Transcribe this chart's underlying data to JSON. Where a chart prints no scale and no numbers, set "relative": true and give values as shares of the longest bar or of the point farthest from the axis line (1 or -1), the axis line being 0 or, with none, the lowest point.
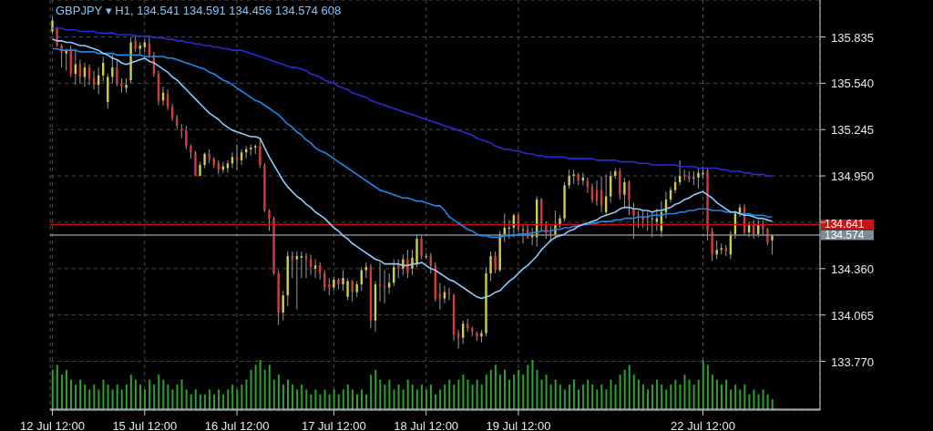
{
  "chart_data": [
    {
      "type": "candlestick",
      "title": "GBPJPY ▾ H1, 134.541 134.591 134.456 134.574 608",
      "categories": [
        "12 Jul 12:00",
        null,
        null,
        null,
        null,
        null,
        null,
        null,
        null,
        null,
        null,
        null,
        null,
        null,
        null,
        null,
        null,
        null,
        null,
        null,
        "15 Jul 12:00",
        null,
        null,
        null,
        null,
        null,
        null,
        null,
        null,
        null,
        null,
        null,
        null,
        null,
        null,
        null,
        null,
        null,
        null,
        null,
        "16 Jul 12:00",
        null,
        null,
        null,
        null,
        null,
        null,
        null,
        null,
        null,
        null,
        null,
        null,
        null,
        null,
        null,
        null,
        null,
        null,
        null,
        null,
        "17 Jul 12:00",
        null,
        null,
        null,
        null,
        null,
        null,
        null,
        null,
        null,
        null,
        null,
        null,
        null,
        null,
        null,
        null,
        null,
        null,
        null,
        "18 Jul 12:00",
        null,
        null,
        null,
        null,
        null,
        null,
        null,
        null,
        null,
        null,
        null,
        null,
        null,
        null,
        null,
        null,
        null,
        null,
        null,
        "19 Jul 12:00",
        null,
        null,
        null,
        null,
        null,
        null,
        null,
        null,
        null,
        null,
        null,
        null,
        null,
        null,
        null,
        null,
        null,
        null,
        null,
        null,
        null,
        null,
        null,
        null,
        null,
        null,
        null,
        null,
        null,
        null,
        null,
        null,
        null,
        null,
        null,
        null,
        null,
        null,
        null,
        "22 Jul 12:00",
        null,
        null,
        null,
        null,
        null,
        null,
        null,
        null,
        null,
        null,
        null,
        null,
        null,
        null,
        null
      ],
      "ohlc": [
        [
          135.87,
          135.96,
          135.85,
          135.94
        ],
        [
          135.89,
          135.9,
          135.77,
          135.78
        ],
        [
          135.78,
          135.79,
          135.64,
          135.74
        ],
        [
          135.73,
          135.76,
          135.62,
          135.75
        ],
        [
          135.76,
          135.78,
          135.58,
          135.6
        ],
        [
          135.6,
          135.76,
          135.53,
          135.66
        ],
        [
          135.66,
          135.69,
          135.54,
          135.58
        ],
        [
          135.58,
          135.67,
          135.52,
          135.64
        ],
        [
          135.64,
          135.66,
          135.53,
          135.57
        ],
        [
          135.57,
          135.62,
          135.5,
          135.53
        ],
        [
          135.53,
          135.64,
          135.47,
          135.59
        ],
        [
          135.59,
          135.71,
          135.55,
          135.67
        ],
        [
          135.42,
          135.6,
          135.38,
          135.58
        ],
        [
          135.58,
          135.72,
          135.54,
          135.64
        ],
        [
          135.64,
          135.69,
          135.52,
          135.54
        ],
        [
          135.54,
          135.57,
          135.48,
          135.52
        ],
        [
          135.51,
          135.57,
          135.48,
          135.53
        ],
        [
          135.56,
          135.83,
          135.54,
          135.8
        ],
        [
          135.81,
          135.85,
          135.74,
          135.76
        ],
        [
          135.76,
          135.8,
          135.72,
          135.78
        ],
        [
          135.77,
          135.82,
          135.74,
          135.8
        ],
        [
          135.79,
          135.84,
          135.7,
          135.72
        ],
        [
          135.72,
          135.74,
          135.58,
          135.6
        ],
        [
          135.6,
          135.62,
          135.4,
          135.43
        ],
        [
          135.43,
          135.52,
          135.4,
          135.48
        ],
        [
          135.47,
          135.5,
          135.37,
          135.39
        ],
        [
          135.39,
          135.41,
          135.3,
          135.32
        ],
        [
          135.32,
          135.34,
          135.25,
          135.27
        ],
        [
          135.25,
          135.28,
          135.19,
          135.24
        ],
        [
          135.24,
          135.27,
          135.12,
          135.14
        ],
        [
          135.14,
          135.15,
          135.06,
          135.1
        ],
        [
          135.1,
          135.11,
          134.95,
          134.95
        ],
        [
          134.95,
          135.04,
          134.95,
          135.02
        ],
        [
          135.02,
          135.1,
          135.0,
          135.09
        ],
        [
          135.09,
          135.12,
          135.03,
          135.06
        ],
        [
          135.06,
          135.07,
          135.0,
          135.02
        ],
        [
          135.03,
          135.05,
          134.96,
          134.99
        ],
        [
          134.99,
          135.04,
          134.97,
          135.01
        ],
        [
          135.0,
          135.05,
          134.97,
          135.03
        ],
        [
          135.03,
          135.1,
          135.0,
          135.07
        ],
        [
          135.07,
          135.15,
          134.99,
          135.05
        ],
        [
          135.05,
          135.12,
          135.02,
          135.1
        ],
        [
          135.1,
          135.14,
          135.06,
          135.12
        ],
        [
          135.12,
          135.15,
          135.08,
          135.13
        ],
        [
          135.13,
          135.15,
          135.09,
          135.14
        ],
        [
          135.14,
          135.19,
          135.0,
          135.02
        ],
        [
          135.02,
          135.03,
          134.72,
          134.73
        ],
        [
          134.73,
          134.74,
          134.6,
          134.68
        ],
        [
          134.68,
          134.69,
          134.32,
          134.33
        ],
        [
          134.33,
          134.35,
          134.0,
          134.08
        ],
        [
          134.08,
          134.22,
          134.03,
          134.19
        ],
        [
          134.19,
          134.47,
          134.12,
          134.44
        ],
        [
          134.44,
          134.47,
          134.3,
          134.42
        ],
        [
          134.42,
          134.47,
          134.1,
          134.44
        ],
        [
          134.43,
          134.47,
          134.3,
          134.44
        ],
        [
          134.44,
          134.46,
          134.3,
          134.42
        ],
        [
          134.42,
          134.45,
          134.32,
          134.37
        ],
        [
          134.36,
          134.42,
          134.3,
          134.38
        ],
        [
          134.38,
          134.4,
          134.29,
          134.33
        ],
        [
          134.33,
          134.35,
          134.22,
          134.24
        ],
        [
          134.26,
          134.3,
          134.19,
          134.24
        ],
        [
          134.24,
          134.31,
          134.22,
          134.29
        ],
        [
          134.29,
          134.3,
          134.23,
          134.26
        ],
        [
          134.26,
          134.35,
          134.22,
          134.3
        ],
        [
          134.18,
          134.3,
          134.16,
          134.28
        ],
        [
          134.28,
          134.29,
          134.15,
          134.21
        ],
        [
          134.21,
          134.28,
          134.18,
          134.26
        ],
        [
          134.26,
          134.37,
          134.22,
          134.35
        ],
        [
          134.35,
          134.4,
          134.3,
          134.37
        ],
        [
          134.37,
          134.39,
          133.98,
          134.03
        ],
        [
          134.03,
          134.28,
          133.96,
          134.26
        ],
        [
          134.26,
          134.4,
          134.15,
          134.25
        ],
        [
          134.25,
          134.35,
          134.14,
          134.24
        ],
        [
          134.24,
          134.33,
          134.2,
          134.27
        ],
        [
          134.27,
          134.42,
          134.25,
          134.37
        ],
        [
          134.38,
          134.42,
          134.3,
          134.36
        ],
        [
          134.36,
          134.45,
          134.32,
          134.42
        ],
        [
          134.42,
          134.48,
          134.3,
          134.33
        ],
        [
          134.36,
          134.48,
          134.32,
          134.43
        ],
        [
          134.39,
          134.58,
          134.37,
          134.55
        ],
        [
          134.55,
          134.57,
          134.42,
          134.44
        ],
        [
          134.44,
          134.46,
          134.42,
          134.44
        ],
        [
          134.44,
          134.46,
          134.33,
          134.38
        ],
        [
          134.38,
          134.4,
          134.15,
          134.17
        ],
        [
          134.2,
          134.27,
          134.1,
          134.17
        ],
        [
          134.17,
          134.25,
          134.14,
          134.21
        ],
        [
          134.21,
          134.24,
          134.16,
          134.2
        ],
        [
          134.19,
          134.2,
          133.9,
          133.94
        ],
        [
          133.95,
          133.97,
          133.85,
          133.92
        ],
        [
          133.92,
          134.03,
          133.88,
          134.01
        ],
        [
          134.01,
          134.04,
          133.96,
          133.98
        ],
        [
          133.98,
          133.99,
          133.93,
          133.96
        ],
        [
          133.95,
          133.96,
          133.9,
          133.93
        ],
        [
          133.93,
          133.97,
          133.89,
          133.95
        ],
        [
          133.95,
          134.37,
          133.93,
          134.33
        ],
        [
          134.33,
          134.47,
          134.28,
          134.44
        ],
        [
          134.44,
          134.47,
          134.33,
          134.35
        ],
        [
          134.35,
          134.6,
          134.34,
          134.58
        ],
        [
          134.58,
          134.71,
          134.53,
          134.62
        ],
        [
          134.62,
          134.67,
          134.55,
          134.62
        ],
        [
          134.62,
          134.71,
          134.56,
          134.7
        ],
        [
          134.7,
          134.71,
          134.59,
          134.61
        ],
        [
          134.61,
          134.64,
          134.52,
          134.61
        ],
        [
          134.61,
          134.64,
          134.55,
          134.56
        ],
        [
          134.56,
          134.62,
          134.51,
          134.58
        ],
        [
          134.56,
          134.82,
          134.5,
          134.8
        ],
        [
          134.8,
          134.81,
          134.6,
          134.64
        ],
        [
          134.64,
          134.66,
          134.55,
          134.59
        ],
        [
          134.59,
          134.63,
          134.53,
          134.58
        ],
        [
          134.58,
          134.73,
          134.55,
          134.64
        ],
        [
          134.64,
          134.7,
          134.62,
          134.68
        ],
        [
          134.68,
          134.91,
          134.66,
          134.89
        ],
        [
          134.89,
          134.99,
          134.87,
          134.95
        ],
        [
          134.95,
          134.99,
          134.9,
          134.96
        ],
        [
          134.96,
          134.97,
          134.89,
          134.92
        ],
        [
          134.92,
          134.97,
          134.89,
          134.94
        ],
        [
          134.92,
          134.94,
          134.84,
          134.88
        ],
        [
          134.88,
          134.9,
          134.78,
          134.8
        ],
        [
          134.86,
          134.92,
          134.76,
          134.79
        ],
        [
          134.86,
          134.95,
          134.72,
          134.76
        ],
        [
          134.72,
          134.96,
          134.7,
          134.82
        ],
        [
          134.82,
          134.98,
          134.78,
          134.95
        ],
        [
          134.95,
          135.0,
          134.93,
          134.98
        ],
        [
          134.98,
          135.0,
          134.8,
          134.83
        ],
        [
          134.83,
          134.94,
          134.75,
          134.91
        ],
        [
          134.91,
          134.92,
          134.7,
          134.8
        ],
        [
          134.74,
          134.78,
          134.55,
          134.7
        ],
        [
          134.7,
          134.73,
          134.62,
          134.69
        ],
        [
          134.69,
          134.73,
          134.62,
          134.67
        ],
        [
          134.69,
          134.72,
          134.6,
          134.68
        ],
        [
          134.68,
          134.72,
          134.56,
          134.68
        ],
        [
          134.66,
          134.74,
          134.6,
          134.68
        ],
        [
          134.6,
          134.79,
          134.56,
          134.72
        ],
        [
          134.72,
          134.85,
          134.68,
          134.8
        ],
        [
          134.8,
          134.88,
          134.78,
          134.86
        ],
        [
          134.86,
          134.95,
          134.84,
          134.91
        ],
        [
          134.91,
          135.05,
          134.89,
          134.95
        ],
        [
          134.96,
          134.99,
          134.92,
          134.95
        ],
        [
          134.95,
          134.98,
          134.91,
          134.93
        ],
        [
          134.94,
          134.98,
          134.89,
          134.94
        ],
        [
          134.94,
          135.0,
          134.87,
          134.97
        ],
        [
          134.96,
          135.01,
          134.93,
          134.97
        ],
        [
          134.98,
          135.0,
          134.54,
          134.6
        ],
        [
          134.6,
          134.62,
          134.41,
          134.45
        ],
        [
          134.45,
          134.54,
          134.42,
          134.48
        ],
        [
          134.48,
          134.52,
          134.45,
          134.49
        ],
        [
          134.49,
          134.51,
          134.44,
          134.47
        ],
        [
          134.45,
          134.6,
          134.42,
          134.58
        ],
        [
          134.58,
          134.73,
          134.55,
          134.71
        ],
        [
          134.71,
          134.77,
          134.69,
          134.75
        ],
        [
          134.75,
          134.77,
          134.57,
          134.59
        ],
        [
          134.59,
          134.66,
          134.56,
          134.64
        ],
        [
          134.64,
          134.67,
          134.55,
          134.58
        ],
        [
          134.58,
          134.67,
          134.56,
          134.64
        ],
        [
          134.64,
          134.67,
          134.57,
          134.61
        ],
        [
          134.61,
          134.62,
          134.51,
          134.53
        ],
        [
          134.54,
          134.58,
          134.45,
          134.57
        ]
      ],
      "series": [
        {
          "type": "line",
          "color": "#2a2ad0",
          "values": [
            135.89,
            135.89,
            135.89,
            135.88,
            135.88,
            135.88,
            135.87,
            135.87,
            135.87,
            135.87,
            135.86,
            135.86,
            135.86,
            135.86,
            135.85,
            135.85,
            135.85,
            135.85,
            135.84,
            135.84,
            135.84,
            135.84,
            135.83,
            135.83,
            135.83,
            135.82,
            135.82,
            135.81,
            135.81,
            135.8,
            135.8,
            135.79,
            135.79,
            135.78,
            135.78,
            135.77,
            135.77,
            135.76,
            135.76,
            135.75,
            135.75,
            135.75,
            135.74,
            135.73,
            135.72,
            135.71,
            135.7,
            135.69,
            135.68,
            135.67,
            135.66,
            135.65,
            135.64,
            135.64,
            135.63,
            135.62,
            135.6,
            135.59,
            135.58,
            135.56,
            135.55,
            135.54,
            135.52,
            135.51,
            135.5,
            135.48,
            135.47,
            135.46,
            135.45,
            135.43,
            135.42,
            135.41,
            135.4,
            135.39,
            135.38,
            135.37,
            135.36,
            135.35,
            135.34,
            135.33,
            135.32,
            135.31,
            135.3,
            135.29,
            135.28,
            135.27,
            135.26,
            135.25,
            135.24,
            135.23,
            135.22,
            135.21,
            135.19,
            135.18,
            135.17,
            135.16,
            135.14,
            135.13,
            135.12,
            135.12,
            135.11,
            135.11,
            135.1,
            135.09,
            135.09,
            135.08,
            135.08,
            135.07,
            135.07,
            135.07,
            135.07,
            135.07,
            135.06,
            135.06,
            135.06,
            135.06,
            135.06,
            135.06,
            135.05,
            135.05,
            135.05,
            135.05,
            135.05,
            135.04,
            135.04,
            135.04,
            135.04,
            135.03,
            135.03,
            135.03,
            135.02,
            135.02,
            135.02,
            135.02,
            135.02,
            135.02,
            135.01,
            135.01,
            135.01,
            135.01,
            135.0,
            135.0,
            135.0,
            135.0,
            135.0,
            134.99,
            134.99,
            134.98,
            134.98,
            134.98,
            134.97,
            134.97,
            134.96,
            134.96,
            134.96,
            134.95,
            134.95
          ]
        },
        {
          "type": "line",
          "color": "#1e88e5",
          "values": [
            135.76,
            135.76,
            135.75,
            135.75,
            135.75,
            135.75,
            135.74,
            135.74,
            135.74,
            135.74,
            135.73,
            135.73,
            135.73,
            135.73,
            135.72,
            135.72,
            135.72,
            135.72,
            135.72,
            135.72,
            135.71,
            135.71,
            135.71,
            135.71,
            135.71,
            135.7,
            135.7,
            135.69,
            135.68,
            135.67,
            135.66,
            135.65,
            135.64,
            135.63,
            135.61,
            135.6,
            135.58,
            135.56,
            135.55,
            135.53,
            135.51,
            135.49,
            135.47,
            135.45,
            135.43,
            135.42,
            135.4,
            135.38,
            135.36,
            135.34,
            135.31,
            135.28,
            135.26,
            135.23,
            135.21,
            135.18,
            135.16,
            135.13,
            135.11,
            135.1,
            135.08,
            135.06,
            135.04,
            135.02,
            135.0,
            134.98,
            134.96,
            134.94,
            134.92,
            134.9,
            134.88,
            134.86,
            134.85,
            134.84,
            134.83,
            134.82,
            134.81,
            134.81,
            134.8,
            134.79,
            134.79,
            134.78,
            134.77,
            134.76,
            134.76,
            134.73,
            134.69,
            134.67,
            134.65,
            134.63,
            134.61,
            134.6,
            134.58,
            134.57,
            134.57,
            134.56,
            134.56,
            134.56,
            134.57,
            134.57,
            134.57,
            134.58,
            134.58,
            134.58,
            134.59,
            134.59,
            134.6,
            134.6,
            134.6,
            134.61,
            134.61,
            134.62,
            134.62,
            134.63,
            134.63,
            134.64,
            134.64,
            134.65,
            134.65,
            134.66,
            134.66,
            134.66,
            134.67,
            134.67,
            134.68,
            134.68,
            134.68,
            134.69,
            134.69,
            134.69,
            134.7,
            134.7,
            134.7,
            134.71,
            134.71,
            134.71,
            134.72,
            134.72,
            134.73,
            134.73,
            134.74,
            134.74,
            134.74,
            134.73,
            134.73,
            134.73,
            134.72,
            134.72,
            134.72,
            134.71,
            134.71,
            134.71,
            134.7,
            134.7,
            134.7,
            134.69,
            134.69
          ]
        },
        {
          "type": "line",
          "color": "#90caf9",
          "values": [
            135.82,
            135.81,
            135.81,
            135.8,
            135.8,
            135.79,
            135.78,
            135.78,
            135.77,
            135.76,
            135.75,
            135.73,
            135.72,
            135.7,
            135.69,
            135.67,
            135.66,
            135.67,
            135.68,
            135.69,
            135.7,
            135.68,
            135.67,
            135.65,
            135.63,
            135.61,
            135.58,
            135.56,
            135.53,
            135.5,
            135.47,
            135.44,
            135.41,
            135.38,
            135.35,
            135.33,
            135.31,
            135.28,
            135.26,
            135.24,
            135.23,
            135.22,
            135.21,
            135.2,
            135.2,
            135.19,
            135.13,
            135.07,
            135.02,
            134.97,
            134.92,
            134.88,
            134.85,
            134.82,
            134.8,
            134.77,
            134.75,
            134.72,
            134.7,
            134.68,
            134.65,
            134.62,
            134.6,
            134.57,
            134.55,
            134.52,
            134.5,
            134.48,
            134.46,
            134.44,
            134.42,
            134.41,
            134.39,
            134.39,
            134.39,
            134.39,
            134.38,
            134.38,
            134.39,
            134.39,
            134.4,
            134.38,
            134.36,
            134.35,
            134.33,
            134.31,
            134.29,
            134.28,
            134.26,
            134.24,
            134.22,
            134.2,
            134.18,
            134.17,
            134.18,
            134.19,
            134.21,
            134.22,
            134.25,
            134.28,
            134.3,
            134.33,
            134.36,
            134.38,
            134.41,
            134.44,
            134.48,
            134.51,
            134.54,
            134.56,
            134.57,
            134.58,
            134.6,
            134.61,
            134.63,
            134.64,
            134.65,
            134.66,
            134.67,
            134.69,
            134.7,
            134.71,
            134.72,
            134.74,
            134.75,
            134.75,
            134.74,
            134.74,
            134.73,
            134.73,
            134.72,
            134.73,
            134.73,
            134.74,
            134.75,
            134.77,
            134.78,
            134.8,
            134.81,
            134.83,
            134.84,
            134.85,
            134.83,
            134.81,
            134.78,
            134.76,
            134.74,
            134.72,
            134.72,
            134.71,
            134.7,
            134.7,
            134.69,
            134.68,
            134.68,
            134.67,
            134.66
          ]
        }
      ],
      "ylim": [
        133.46,
        136.07
      ],
      "yticks": [
        {
          "value": 133.77,
          "label": "133.770"
        },
        {
          "value": 134.065,
          "label": "134.065"
        },
        {
          "value": 134.36,
          "label": "134.360"
        },
        {
          "value": 134.655,
          "label": null
        },
        {
          "value": 134.95,
          "label": "134.950"
        },
        {
          "value": 135.245,
          "label": "135.245"
        },
        {
          "value": 135.54,
          "label": "135.540"
        },
        {
          "value": 135.835,
          "label": "135.835"
        }
      ],
      "grid": true,
      "ref_lines": [
        {
          "axis": "y",
          "value": 134.641,
          "label": "134.641",
          "color": "#c81414"
        },
        {
          "axis": "y",
          "value": 134.574,
          "label": "134.574",
          "color": "#7d8c99"
        }
      ]
    },
    {
      "type": "bar",
      "relative": true,
      "color": "#2ea02e",
      "categories": [
        null,
        null,
        null,
        null,
        null,
        null,
        null,
        null,
        null,
        null,
        null,
        null,
        null,
        null,
        null,
        null,
        null,
        null,
        null,
        null,
        null,
        null,
        null,
        null,
        null,
        null,
        null,
        null,
        null,
        null,
        null,
        null,
        null,
        null,
        null,
        null,
        null,
        null,
        null,
        null,
        null,
        null,
        null,
        null,
        null,
        null,
        null,
        null,
        null,
        null,
        null,
        null,
        null,
        null,
        null,
        null,
        null,
        null,
        null,
        null,
        null,
        null,
        null,
        null,
        null,
        null,
        null,
        null,
        null,
        null,
        null,
        null,
        null,
        null,
        null,
        null,
        null,
        null,
        null,
        null,
        null,
        null,
        null,
        null,
        null,
        null,
        null,
        null,
        null,
        null,
        null,
        null,
        null,
        null,
        null,
        null,
        null,
        null,
        null,
        null,
        null,
        null,
        null,
        null,
        null,
        null,
        null,
        null,
        null,
        null,
        null,
        null,
        null,
        null,
        null,
        null,
        null,
        null,
        null,
        null,
        null,
        null,
        null,
        null,
        null,
        null,
        null,
        null,
        null,
        null,
        null,
        null,
        null,
        null,
        null,
        null,
        null,
        null,
        null,
        null,
        null,
        null,
        null,
        null,
        null,
        null,
        null,
        null,
        null,
        null,
        null,
        null,
        null,
        null,
        null,
        null,
        null
      ],
      "values": [
        0.8,
        0.9,
        0.7,
        0.8,
        0.6,
        0.5,
        0.6,
        0.5,
        0.4,
        0.5,
        0.4,
        0.6,
        0.5,
        0.4,
        0.5,
        0.4,
        0.5,
        0.7,
        0.6,
        0.5,
        0.4,
        0.6,
        0.5,
        0.7,
        0.6,
        0.5,
        0.4,
        0.5,
        0.6,
        0.4,
        0.3,
        0.4,
        0.3,
        0.3,
        0.4,
        0.3,
        0.4,
        0.3,
        0.4,
        0.5,
        0.4,
        0.5,
        0.6,
        0.8,
        0.9,
        1.0,
        0.8,
        0.9,
        0.6,
        0.7,
        0.5,
        0.6,
        0.5,
        0.4,
        0.5,
        0.4,
        0.3,
        0.4,
        0.3,
        0.4,
        0.3,
        0.4,
        0.3,
        0.4,
        0.5,
        0.4,
        0.3,
        0.4,
        0.3,
        0.7,
        0.8,
        0.6,
        0.5,
        0.6,
        0.4,
        0.5,
        0.4,
        0.6,
        0.5,
        0.4,
        0.5,
        0.4,
        0.5,
        0.3,
        0.4,
        0.5,
        0.6,
        0.5,
        0.6,
        0.7,
        0.6,
        0.5,
        0.6,
        0.5,
        0.7,
        0.8,
        0.9,
        0.7,
        0.8,
        0.6,
        0.7,
        0.8,
        0.7,
        0.9,
        1.0,
        0.8,
        0.6,
        0.7,
        0.5,
        0.6,
        0.5,
        0.4,
        0.5,
        0.6,
        0.4,
        0.5,
        0.6,
        0.5,
        0.4,
        0.5,
        0.4,
        0.6,
        0.5,
        0.7,
        0.8,
        0.9,
        0.7,
        0.6,
        0.5,
        0.4,
        0.5,
        0.6,
        0.5,
        0.4,
        0.5,
        0.6,
        0.5,
        0.7,
        0.6,
        0.5,
        0.6,
        1.0,
        0.9,
        0.7,
        0.6,
        0.5,
        0.6,
        0.4,
        0.5,
        0.4,
        0.5,
        0.3,
        0.4,
        0.3,
        0.4,
        0.3,
        0.2
      ]
    }
  ]
}
